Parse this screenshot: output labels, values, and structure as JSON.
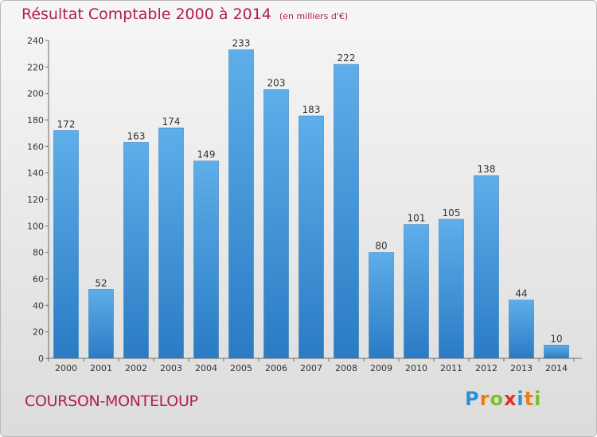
{
  "title": "Résultat Comptable 2000 à 2014",
  "unit": "(en milliers d'€)",
  "place": "COURSON-MONTELOUP",
  "brand": "Proxiti",
  "colors": {
    "bar_light": "#5eaeea",
    "bar_dark": "#2a7bc4",
    "title": "#b0204a"
  },
  "chart_data": {
    "type": "bar",
    "title": "Résultat Comptable 2000 à 2014",
    "categories": [
      "2000",
      "2001",
      "2002",
      "2003",
      "2004",
      "2005",
      "2006",
      "2007",
      "2008",
      "2009",
      "2010",
      "2011",
      "2012",
      "2013",
      "2014"
    ],
    "values": [
      172,
      52,
      163,
      174,
      149,
      233,
      203,
      183,
      222,
      80,
      101,
      105,
      138,
      44,
      10
    ],
    "ylim": [
      0,
      240
    ],
    "yticks": [
      0,
      20,
      40,
      60,
      80,
      100,
      120,
      140,
      160,
      180,
      200,
      220,
      240
    ],
    "grid": false,
    "data_labels": true
  }
}
